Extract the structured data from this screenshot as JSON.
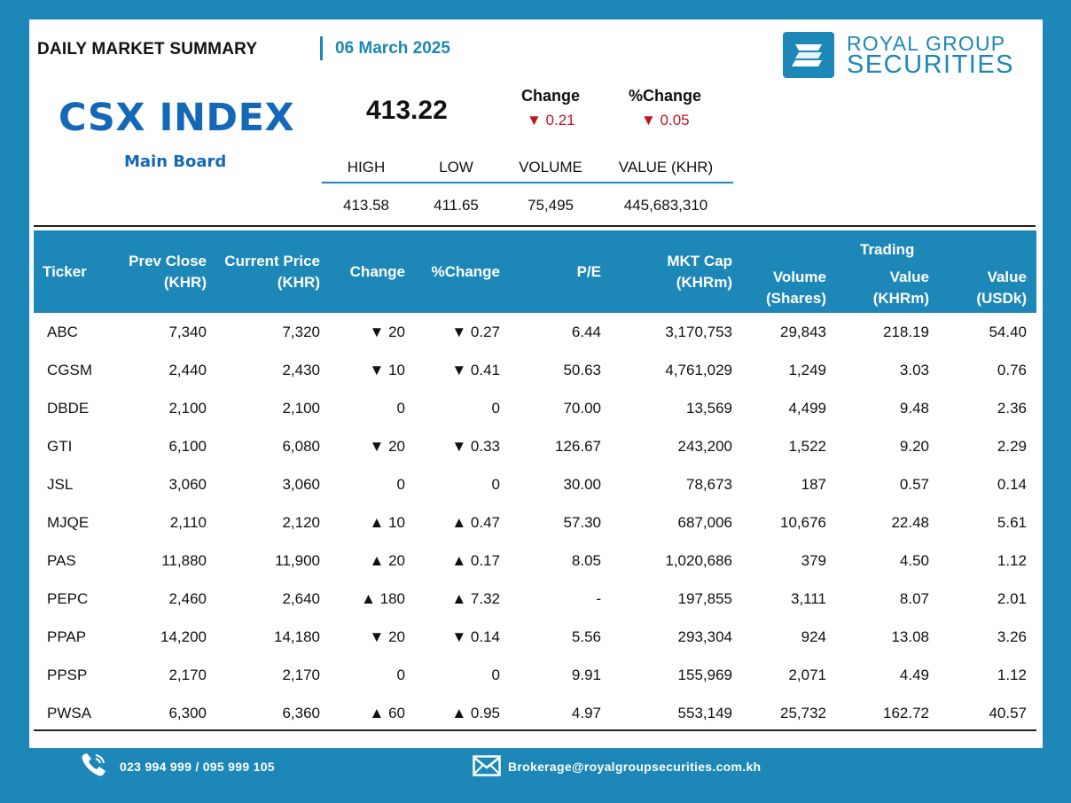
{
  "header": {
    "title": "DAILY MARKET SUMMARY",
    "date": "06 March 2025"
  },
  "logo": {
    "line1": "ROYAL GROUP",
    "line2": "SECURITIES"
  },
  "index": {
    "name": "CSX INDEX",
    "board": "Main Board",
    "value": "413.22",
    "change_label": "Change",
    "change_value": "▼ 0.21",
    "pct_label": "%Change",
    "pct_value": "▼ 0.05",
    "stats_headers": [
      "HIGH",
      "LOW",
      "VOLUME",
      "VALUE (KHR)"
    ],
    "stats_values": [
      "413.58",
      "411.65",
      "75,495",
      "445,683,310"
    ]
  },
  "table": {
    "headers": {
      "ticker": "Ticker",
      "prev_close_1": "Prev Close",
      "prev_close_2": "(KHR)",
      "current_price_1": "Current Price",
      "current_price_2": "(KHR)",
      "change": "Change",
      "pct_change": "%Change",
      "pe": "P/E",
      "mkt_cap_1": "MKT Cap",
      "mkt_cap_2": "(KHRm)",
      "volume_1": "Volume",
      "volume_2": "(Shares)",
      "trading": "Trading",
      "value_khr_1": "Value",
      "value_khr_2": "(KHRm)",
      "value_usd_1": "Value",
      "value_usd_2": "(USDk)"
    },
    "rows": [
      {
        "ticker": "ABC",
        "prev": "7,340",
        "cur": "7,320",
        "chg": "▼ 20",
        "pct": "▼ 0.27",
        "dir": "down",
        "pe": "6.44",
        "cap": "3,170,753",
        "vol": "29,843",
        "vkhr": "218.19",
        "vusd": "54.40"
      },
      {
        "ticker": "CGSM",
        "prev": "2,440",
        "cur": "2,430",
        "chg": "▼ 10",
        "pct": "▼ 0.41",
        "dir": "down",
        "pe": "50.63",
        "cap": "4,761,029",
        "vol": "1,249",
        "vkhr": "3.03",
        "vusd": "0.76"
      },
      {
        "ticker": "DBDE",
        "prev": "2,100",
        "cur": "2,100",
        "chg": "0",
        "pct": "0",
        "dir": "flat",
        "pe": "70.00",
        "cap": "13,569",
        "vol": "4,499",
        "vkhr": "9.48",
        "vusd": "2.36"
      },
      {
        "ticker": "GTI",
        "prev": "6,100",
        "cur": "6,080",
        "chg": "▼ 20",
        "pct": "▼ 0.33",
        "dir": "down",
        "pe": "126.67",
        "cap": "243,200",
        "vol": "1,522",
        "vkhr": "9.20",
        "vusd": "2.29"
      },
      {
        "ticker": "JSL",
        "prev": "3,060",
        "cur": "3,060",
        "chg": "0",
        "pct": "0",
        "dir": "flat",
        "pe": "30.00",
        "cap": "78,673",
        "vol": "187",
        "vkhr": "0.57",
        "vusd": "0.14"
      },
      {
        "ticker": "MJQE",
        "prev": "2,110",
        "cur": "2,120",
        "chg": "▲ 10",
        "pct": "▲ 0.47",
        "dir": "up",
        "pe": "57.30",
        "cap": "687,006",
        "vol": "10,676",
        "vkhr": "22.48",
        "vusd": "5.61"
      },
      {
        "ticker": "PAS",
        "prev": "11,880",
        "cur": "11,900",
        "chg": "▲ 20",
        "pct": "▲ 0.17",
        "dir": "up",
        "pe": "8.05",
        "cap": "1,020,686",
        "vol": "379",
        "vkhr": "4.50",
        "vusd": "1.12"
      },
      {
        "ticker": "PEPC",
        "prev": "2,460",
        "cur": "2,640",
        "chg": "▲ 180",
        "pct": "▲ 7.32",
        "dir": "up",
        "pe": "-",
        "cap": "197,855",
        "vol": "3,111",
        "vkhr": "8.07",
        "vusd": "2.01"
      },
      {
        "ticker": "PPAP",
        "prev": "14,200",
        "cur": "14,180",
        "chg": "▼ 20",
        "pct": "▼ 0.14",
        "dir": "down",
        "pe": "5.56",
        "cap": "293,304",
        "vol": "924",
        "vkhr": "13.08",
        "vusd": "3.26"
      },
      {
        "ticker": "PPSP",
        "prev": "2,170",
        "cur": "2,170",
        "chg": "0",
        "pct": "0",
        "dir": "flat",
        "pe": "9.91",
        "cap": "155,969",
        "vol": "2,071",
        "vkhr": "4.49",
        "vusd": "1.12"
      },
      {
        "ticker": "PWSA",
        "prev": "6,300",
        "cur": "6,360",
        "chg": "▲ 60",
        "pct": "▲ 0.95",
        "dir": "up",
        "pe": "4.97",
        "cap": "553,149",
        "vol": "25,732",
        "vkhr": "162.72",
        "vusd": "40.57"
      }
    ]
  },
  "footer": {
    "phone": "023 994 999 / 095 999 105",
    "email": "Brokerage@royalgroupsecurities.com.kh"
  },
  "icons": {
    "phone": "phone-icon",
    "email": "mail-icon",
    "logo": "logo-icon"
  },
  "colors": {
    "brand_blue": "#1d87b8",
    "index_blue": "#1468b8",
    "down_red": "#c0141c",
    "up_green": "#2e6b27"
  }
}
